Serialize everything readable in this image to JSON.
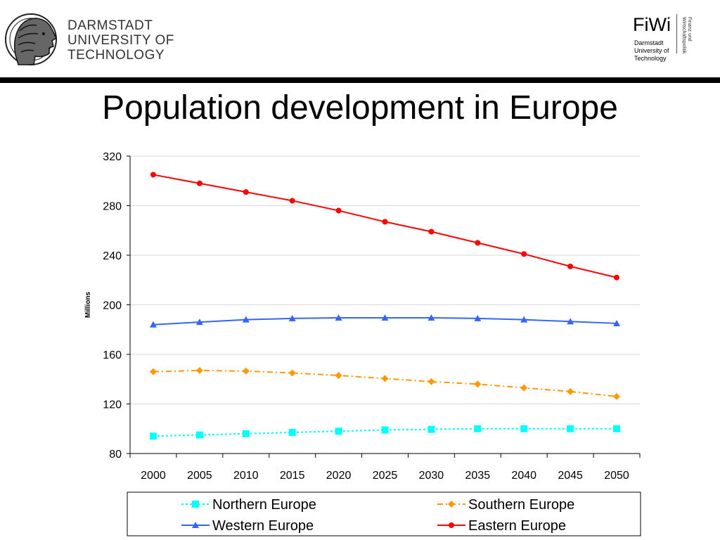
{
  "header": {
    "university_lines": [
      "DARMSTADT",
      "UNIVERSITY OF",
      "TECHNOLOGY"
    ],
    "logo_icon": "athena-head-logo-icon",
    "fiwi": {
      "title": "FiWi",
      "sub_lines": [
        "Darmstadt",
        "University of",
        "Technology"
      ],
      "vertical_text": "Finanz und Wirtschaftspolitik"
    }
  },
  "page": {
    "title": "Population development in Europe"
  },
  "chart_data": {
    "type": "line",
    "ylabel": "Millions",
    "xlabel": "",
    "ylim": [
      80,
      320
    ],
    "yticks": [
      80,
      120,
      160,
      200,
      240,
      280,
      320
    ],
    "grid": "horizontal",
    "legend_position": "bottom",
    "categories": [
      "2000",
      "2005",
      "2010",
      "2015",
      "2020",
      "2025",
      "2030",
      "2035",
      "2040",
      "2045",
      "2050"
    ],
    "series": [
      {
        "name": "Northern Europe",
        "color": "#00ffff",
        "marker": "square",
        "dash": "dotted",
        "values": [
          94,
          95,
          96,
          97,
          98,
          99,
          99.5,
          100,
          100,
          100,
          100
        ]
      },
      {
        "name": "Southern Europe",
        "color": "#ff9900",
        "marker": "diamond",
        "dash": "dashdot",
        "values": [
          146,
          147,
          146.5,
          145,
          143,
          140.5,
          138,
          136,
          133,
          130,
          126
        ]
      },
      {
        "name": "Western Europe",
        "color": "#3366ff",
        "marker": "triangle",
        "dash": "solid",
        "values": [
          184,
          186,
          188,
          189,
          189.5,
          189.5,
          189.5,
          189,
          188,
          186.5,
          185
        ]
      },
      {
        "name": "Eastern Europe",
        "color": "#ff0000",
        "marker": "circle",
        "dash": "solid",
        "values": [
          305,
          298,
          291,
          284,
          276,
          267,
          259,
          250,
          241,
          231,
          222
        ]
      }
    ]
  }
}
